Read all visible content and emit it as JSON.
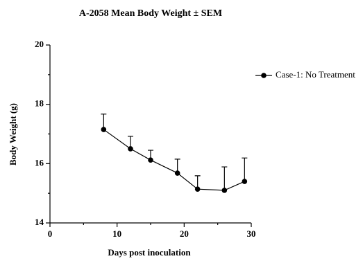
{
  "chart_data": {
    "type": "line",
    "title": "A-2058 Mean Body Weight ± SEM",
    "x_label": "Days post inoculation",
    "y_label": "Body Weight (g)",
    "x": [
      8,
      12,
      15,
      19,
      22,
      26,
      29
    ],
    "series": [
      {
        "name": "Case-1: No Treatment",
        "color": "#000000",
        "values": [
          17.15,
          16.5,
          16.12,
          15.68,
          15.14,
          15.1,
          15.4
        ],
        "errors": [
          0.52,
          0.42,
          0.33,
          0.47,
          0.45,
          0.79,
          0.79
        ]
      }
    ],
    "xlim": [
      0,
      30
    ],
    "xticks": [
      0,
      10,
      20,
      30
    ],
    "xminorticks": [
      5,
      15,
      25
    ],
    "ylim": [
      14,
      20
    ],
    "yticks": [
      14,
      16,
      18,
      20
    ],
    "yminorticks": [
      15,
      17,
      19
    ],
    "legend": "right",
    "grid": false
  }
}
